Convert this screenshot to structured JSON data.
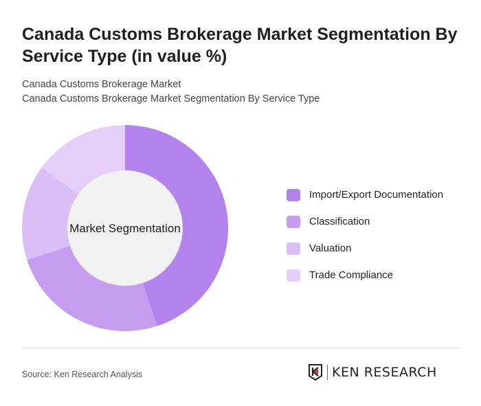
{
  "title": "Canada Customs Brokerage Market Segmentation By Service Type (in value %)",
  "subtitle1": "Canada Customs Brokerage Market",
  "subtitle2": "Canada Customs Brokerage Market Segmentation By Service Type",
  "source": "Source: Ken Research Analysis",
  "logo_text": "KEN RESEARCH",
  "chart_data": {
    "type": "pie",
    "donut": true,
    "center_label": "Market Segmentation",
    "categories": [
      "Import/Export Documentation",
      "Classification",
      "Valuation",
      "Trade Compliance"
    ],
    "values": [
      45,
      25,
      15,
      15
    ],
    "unit": "%",
    "colors": [
      "#b283ec",
      "#c69cee",
      "#d9bff5",
      "#e3cff7"
    ],
    "legend_position": "right"
  }
}
